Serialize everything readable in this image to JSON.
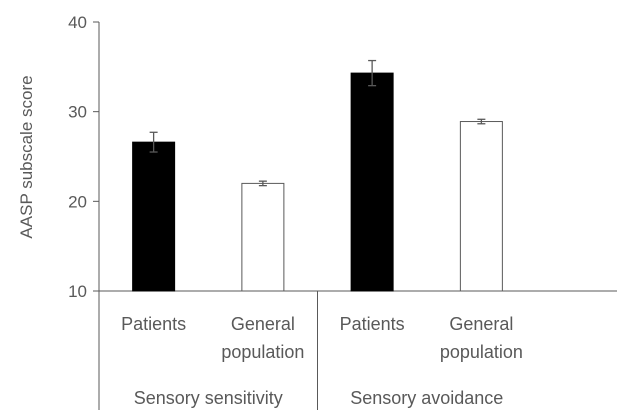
{
  "chart_data": {
    "type": "bar",
    "ylabel": "AASP subscale score",
    "xlabel": "",
    "ylim": [
      10,
      40
    ],
    "yticks": [
      "10",
      "20",
      "30",
      "40"
    ],
    "groups": [
      {
        "name": "Sensory sensitivity",
        "bars": [
          {
            "category": "Patients",
            "value": 26.6,
            "error": 1.1,
            "fill": "#000000"
          },
          {
            "category": "General population",
            "category_lines": [
              "General",
              "population"
            ],
            "value": 22.0,
            "error": 0.25,
            "fill": "#ffffff"
          }
        ]
      },
      {
        "name": "Sensory avoidance",
        "bars": [
          {
            "category": "Patients",
            "value": 34.3,
            "error": 1.4,
            "fill": "#000000"
          },
          {
            "category": "General population",
            "category_lines": [
              "General",
              "population"
            ],
            "value": 28.9,
            "error": 0.25,
            "fill": "#ffffff"
          }
        ]
      }
    ],
    "grid": false,
    "colors": {
      "axis": "#595959",
      "patients": "#000000",
      "general_population": "#ffffff",
      "error_bar": "#595959"
    }
  }
}
